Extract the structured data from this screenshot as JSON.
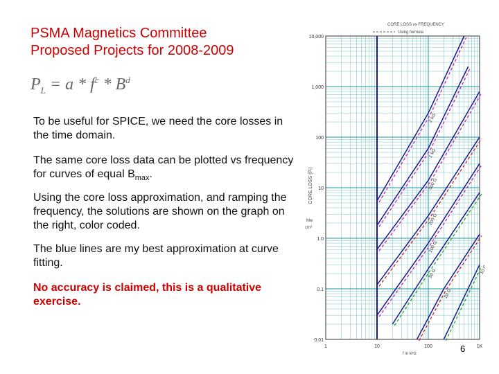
{
  "slide": {
    "title_line1": "PSMA Magnetics Committee",
    "title_line2": "Proposed Projects for 2008-2009",
    "formula": {
      "lhs": "P",
      "lhs_sub": "L",
      "eq": " = a * f",
      "exp_c": "c",
      "mid": " * ",
      "b": "B",
      "exp_d": "d"
    },
    "para1": "To be useful for SPICE, we need the core losses in the time domain.",
    "para2_main": "The same core loss data can be plotted vs frequency for curves of equal B",
    "para2_sub": "max",
    "para2_end": ".",
    "para3": "Using the core loss approximation, and ramping the frequency, the solutions are shown on the graph on the right, color coded.",
    "para4": "The blue lines are my best approximation at curve fitting.",
    "para5": "No accuracy is claimed, this is a qualitative exercise.",
    "page_number": "6"
  },
  "colors": {
    "title": "#cc0000",
    "blue_fit": "#1a1a8c",
    "magenta_formula": "#cc22aa",
    "red_formula": "#cc2222",
    "green_formula": "#22aa22",
    "grid": "#1a9aa0"
  },
  "chart_data": {
    "type": "line",
    "title": "CORE LOSS vs FREQUENCY",
    "legend": "Using formula",
    "xlabel": "f in kHz",
    "ylabel": "CORE LOSS (Pₗ)",
    "yunits_line1": "Mw",
    "yunits_line2": "cm³",
    "x_scale": "log",
    "y_scale": "log",
    "xlim": [
      1,
      1000
    ],
    "ylim": [
      0.01,
      10000
    ],
    "y_ticks": [
      "10,000",
      "1,000",
      "100",
      "10",
      "1.0",
      "0.1",
      "0.01"
    ],
    "x_ticks": [
      "1",
      "10",
      "100",
      "1K"
    ],
    "series": [
      {
        "name": "2 kG",
        "points": [
          [
            10,
            5.5
          ],
          [
            100,
            300
          ],
          [
            500,
            10000
          ]
        ]
      },
      {
        "name": "1 kG",
        "points": [
          [
            10,
            1.8
          ],
          [
            100,
            60
          ],
          [
            600,
            2500
          ]
        ]
      },
      {
        "name": "500 G",
        "points": [
          [
            10,
            0.6
          ],
          [
            100,
            14
          ],
          [
            1000,
            800
          ]
        ]
      },
      {
        "name": "200 G",
        "points": [
          [
            10,
            0.12
          ],
          [
            100,
            2.8
          ],
          [
            1000,
            100
          ]
        ]
      },
      {
        "name": "100 G",
        "points": [
          [
            10,
            0.03
          ],
          [
            100,
            0.8
          ],
          [
            1000,
            30
          ]
        ]
      },
      {
        "name": "50 G",
        "points": [
          [
            20,
            0.02
          ],
          [
            100,
            0.25
          ],
          [
            1000,
            8
          ]
        ]
      },
      {
        "name": "20 G",
        "points": [
          [
            60,
            0.01
          ],
          [
            200,
            0.1
          ],
          [
            1000,
            1.2
          ]
        ]
      },
      {
        "name": "10 G",
        "points": [
          [
            200,
            0.01
          ],
          [
            1000,
            0.3
          ]
        ]
      }
    ]
  }
}
